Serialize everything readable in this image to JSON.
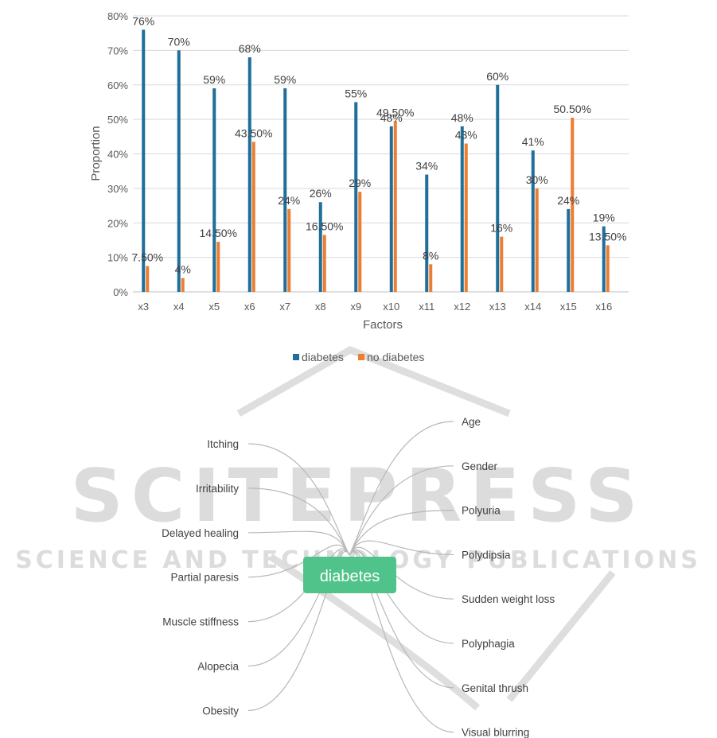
{
  "chart_data": {
    "type": "bar",
    "xlabel": "Factors",
    "ylabel": "Proportion",
    "ylim": [
      0,
      80
    ],
    "yticks": [
      "0%",
      "10%",
      "20%",
      "30%",
      "40%",
      "50%",
      "60%",
      "70%",
      "80%"
    ],
    "categories": [
      "x3",
      "x4",
      "x5",
      "x6",
      "x7",
      "x8",
      "x9",
      "x10",
      "x11",
      "x12",
      "x13",
      "x14",
      "x15",
      "x16"
    ],
    "series": [
      {
        "name": "diabetes",
        "color": "#1f6f9a",
        "values": [
          76,
          70,
          59,
          68,
          59,
          26,
          55,
          48,
          34,
          48,
          60,
          41,
          24,
          19
        ],
        "labels": [
          "76%",
          "70%",
          "59%",
          "68%",
          "59%",
          "26%",
          "55%",
          "48%",
          "34%",
          "48%",
          "60%",
          "41%",
          "24%",
          "19%"
        ]
      },
      {
        "name": "no diabetes",
        "color": "#ed7d31",
        "values": [
          7.5,
          4,
          14.5,
          43.5,
          24,
          16.5,
          29,
          49.5,
          8,
          43,
          16,
          30,
          50.5,
          13.5
        ],
        "labels": [
          "7.50%",
          "4%",
          "14.50%",
          "43.50%",
          "24%",
          "16.50%",
          "29%",
          "49.50%",
          "8%",
          "43%",
          "16%",
          "30%",
          "50.50%",
          "13.50%"
        ]
      }
    ],
    "grid": true,
    "legend": "bottom"
  },
  "mindmap": {
    "center": "diabetes",
    "center_color": "#4fc38a",
    "left": [
      "Itching",
      "Irritability",
      "Delayed healing",
      "Partial paresis",
      "Muscle stiffness",
      "Alopecia",
      "Obesity"
    ],
    "right": [
      "Age",
      "Gender",
      "Polyuria",
      "Polydipsia",
      "Sudden weight loss",
      "Polyphagia",
      "Genital thrush",
      "Visual blurring"
    ]
  },
  "watermark": {
    "line1": "SCITEPRESS",
    "line2": "SCIENCE AND TECHNOLOGY PUBLICATIONS"
  }
}
